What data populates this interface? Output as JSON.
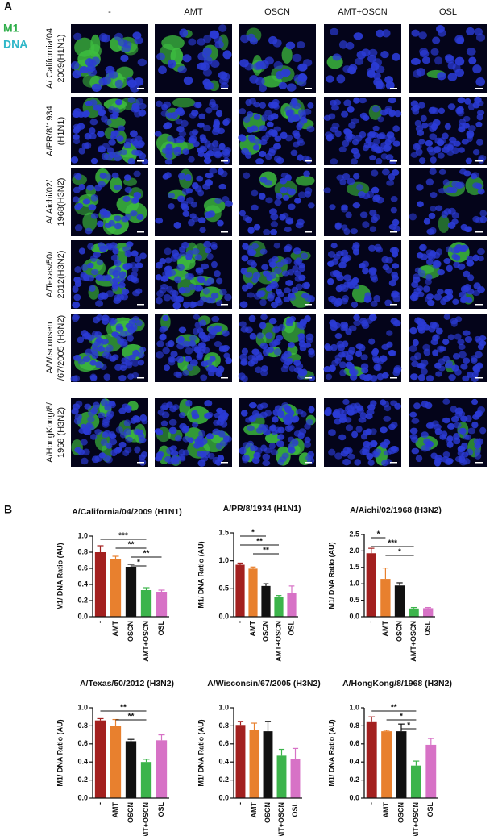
{
  "panel_a": {
    "label": "A",
    "legend": [
      "M1",
      "DNA"
    ],
    "columns": [
      "-",
      "AMT",
      "OSCN",
      "AMT+OSCN",
      "OSL"
    ],
    "rows": [
      [
        "A/ California/04",
        "2009(H1N1)"
      ],
      [
        "A/PR/8/1934",
        "(H1N1)"
      ],
      [
        "A/ Aichi/02/",
        "1968(H3N2)"
      ],
      [
        "A/Texas/50/",
        "2012(H3N2)"
      ],
      [
        "A/Wisconsen",
        "/67/2005 (H3N2)"
      ],
      [
        "A/HongKong/8/",
        "1968 (H3N2)"
      ]
    ]
  },
  "panel_b_label": "B",
  "chart_data": [
    {
      "type": "bar",
      "title": "A/California/04/2009 (H1N1)",
      "ylabel": "M1/ DNA Ratio (AU)",
      "categories": [
        "-",
        "AMT",
        "OSCN",
        "AMT+OSCN",
        "OSL"
      ],
      "values": [
        0.8,
        0.72,
        0.62,
        0.33,
        0.31
      ],
      "errors": [
        0.08,
        0.03,
        0.03,
        0.03,
        0.02
      ],
      "colors": [
        "#a3201f",
        "#e8802e",
        "#111111",
        "#3cb44b",
        "#d772c6"
      ],
      "ylim": [
        0,
        1.0
      ],
      "yticks": [
        {
          "value": 0,
          "label": "0.0"
        },
        0.2,
        0.4,
        0.6,
        0.8,
        {
          "value": 1,
          "label": "1.0"
        }
      ],
      "significance": [
        {
          "label": "***",
          "span": [
            0,
            3
          ]
        },
        {
          "label": "**",
          "span": [
            1,
            3
          ]
        },
        {
          "label": "**",
          "span": [
            2,
            4
          ]
        },
        {
          "label": "*",
          "span": [
            2,
            3
          ]
        }
      ]
    },
    {
      "type": "bar",
      "title": "A/PR/8/1934 (H1N1)",
      "ylabel": "M1/ DNA Ratio (AU)",
      "categories": [
        "-",
        "AMT",
        "OSCN",
        "AMT+OSCN",
        "OSL"
      ],
      "values": [
        0.93,
        0.86,
        0.55,
        0.36,
        0.42
      ],
      "errors": [
        0.03,
        0.03,
        0.04,
        0.02,
        0.13
      ],
      "colors": [
        "#a3201f",
        "#e8802e",
        "#111111",
        "#3cb44b",
        "#d772c6"
      ],
      "ylim": [
        0,
        1.5
      ],
      "yticks": [
        {
          "value": 0,
          "label": "0.0"
        },
        0.5,
        {
          "value": 1,
          "label": "1.0"
        },
        1.5
      ],
      "significance": [
        {
          "label": "*",
          "span": [
            0,
            2
          ]
        },
        {
          "label": "**",
          "span": [
            0,
            3
          ]
        },
        {
          "label": "**",
          "span": [
            1,
            3
          ]
        }
      ]
    },
    {
      "type": "bar",
      "title": "A/Aichi/02/1968 (H3N2)",
      "ylabel": "M1/ DNA Ratio (AU)",
      "categories": [
        "-",
        "AMT",
        "OSCN",
        "AMT+OSCN",
        "OSL"
      ],
      "values": [
        1.93,
        1.15,
        0.95,
        0.25,
        0.26
      ],
      "errors": [
        0.15,
        0.33,
        0.08,
        0.03,
        0.02
      ],
      "colors": [
        "#a3201f",
        "#e8802e",
        "#111111",
        "#3cb44b",
        "#d772c6"
      ],
      "ylim": [
        0,
        2.5
      ],
      "yticks": [
        {
          "value": 0,
          "label": "0.0"
        },
        0.5,
        {
          "value": 1,
          "label": "1.0"
        },
        1.5,
        {
          "value": 2,
          "label": "2.0"
        },
        2.5
      ],
      "significance": [
        {
          "label": "*",
          "span": [
            0,
            1
          ]
        },
        {
          "label": "***",
          "span": [
            0,
            3
          ]
        },
        {
          "label": "*",
          "span": [
            1,
            3
          ]
        }
      ]
    },
    {
      "type": "bar",
      "title": "A/Texas/50/2012 (H3N2)",
      "ylabel": "M1/ DNA Ratio (AU)",
      "categories": [
        "-",
        "AMT",
        "OSCN",
        "AMT+OSCN",
        "OSL"
      ],
      "values": [
        0.86,
        0.8,
        0.63,
        0.4,
        0.64
      ],
      "errors": [
        0.02,
        0.07,
        0.02,
        0.03,
        0.06
      ],
      "colors": [
        "#a3201f",
        "#e8802e",
        "#111111",
        "#3cb44b",
        "#d772c6"
      ],
      "ylim": [
        0,
        1.0
      ],
      "yticks": [
        {
          "value": 0,
          "label": "0.0"
        },
        0.2,
        0.4,
        0.6,
        0.8,
        {
          "value": 1,
          "label": "1.0"
        }
      ],
      "significance": [
        {
          "label": "**",
          "span": [
            0,
            3
          ]
        },
        {
          "label": "**",
          "span": [
            1,
            3
          ]
        }
      ]
    },
    {
      "type": "bar",
      "title": "A/Wisconsin/67/2005 (H3N2)",
      "ylabel": "M1/ DNA Ratio (AU)",
      "categories": [
        "-",
        "AMT",
        "OSCN",
        "AMT+OSCN",
        "OSL"
      ],
      "values": [
        0.81,
        0.75,
        0.74,
        0.47,
        0.43
      ],
      "errors": [
        0.04,
        0.08,
        0.11,
        0.07,
        0.12
      ],
      "colors": [
        "#a3201f",
        "#e8802e",
        "#111111",
        "#3cb44b",
        "#d772c6"
      ],
      "ylim": [
        0,
        1.0
      ],
      "yticks": [
        {
          "value": 0,
          "label": "0.0"
        },
        0.2,
        0.4,
        0.6,
        0.8,
        {
          "value": 1,
          "label": "1.0"
        }
      ]
    },
    {
      "type": "bar",
      "title": "A/HongKong/8/1968 (H3N2)",
      "ylabel": "M1/ DNA Ratio (AU)",
      "categories": [
        "-",
        "AMT",
        "OSCN",
        "AMT+OSCN",
        "OSL"
      ],
      "values": [
        0.85,
        0.74,
        0.74,
        0.36,
        0.59
      ],
      "errors": [
        0.05,
        0.01,
        0.08,
        0.05,
        0.07
      ],
      "colors": [
        "#a3201f",
        "#e8802e",
        "#111111",
        "#3cb44b",
        "#d772c6"
      ],
      "ylim": [
        0,
        1.0
      ],
      "yticks": [
        {
          "value": 0,
          "label": "0.0"
        },
        0.2,
        0.4,
        0.6,
        0.8,
        {
          "value": 1,
          "label": "1.0"
        }
      ],
      "significance": [
        {
          "label": "**",
          "span": [
            0,
            3
          ]
        },
        {
          "label": "*",
          "span": [
            1,
            3
          ]
        },
        {
          "label": "*",
          "span": [
            2,
            3
          ]
        }
      ]
    }
  ]
}
